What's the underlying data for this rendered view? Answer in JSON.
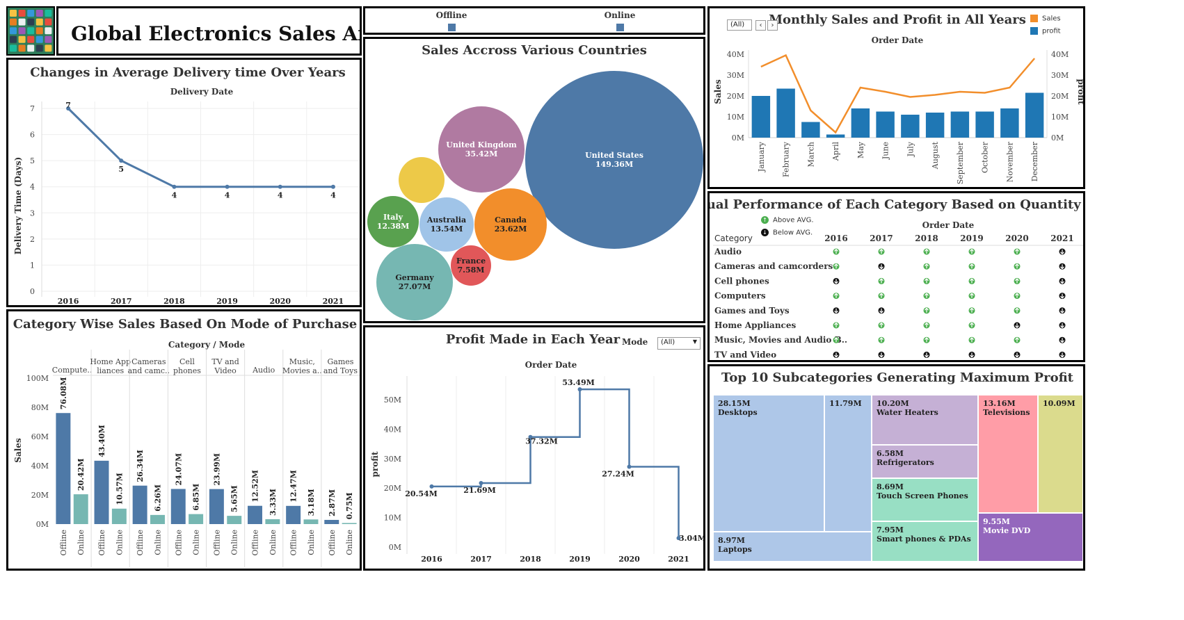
{
  "header": {
    "title": "Global Electronics Sales Analysis",
    "logo_icon": "electronics-grid-icon"
  },
  "colors": {
    "blue": "#4e79a7",
    "teal": "#76b7b2",
    "orange": "#f28e2b",
    "bar_blue": "#1f77b4",
    "up_green": "#4caf50",
    "down_black": "#111111"
  },
  "mode_legend": {
    "items": [
      "Offline",
      "Online"
    ]
  },
  "delivery": {
    "title": "Changes in Average Delivery time Over Years",
    "header": "Delivery Date",
    "ylabel": "Delivery Time (Days)",
    "yticks": [
      "0",
      "1",
      "2",
      "3",
      "4",
      "5",
      "6",
      "7"
    ],
    "chart_data": {
      "type": "line",
      "x": [
        "2016",
        "2017",
        "2018",
        "2019",
        "2020",
        "2021"
      ],
      "values": [
        7,
        5,
        4,
        4,
        4,
        4
      ],
      "ylim": [
        0,
        7
      ],
      "grid": true
    }
  },
  "category_sales": {
    "title": "Category Wise Sales Based On Mode of Purchase",
    "header": "Category  /  Mode",
    "ylabel": "Sales",
    "yticks": [
      "0M",
      "20M",
      "40M",
      "60M",
      "80M",
      "100M"
    ],
    "chart_data": {
      "type": "bar",
      "ylim": [
        0,
        100
      ],
      "categories": [
        {
          "label": [
            "Compute.."
          ],
          "offline": 76.08,
          "online": 20.42,
          "offline_label": "76.08M",
          "online_label": "20.42M"
        },
        {
          "label": [
            "Home App",
            "liances"
          ],
          "offline": 43.4,
          "online": 10.57,
          "offline_label": "43.40M",
          "online_label": "10.57M"
        },
        {
          "label": [
            "Cameras",
            "and camc.."
          ],
          "offline": 26.34,
          "online": 6.26,
          "offline_label": "26.34M",
          "online_label": "6.26M"
        },
        {
          "label": [
            "Cell",
            "phones"
          ],
          "offline": 24.07,
          "online": 6.85,
          "offline_label": "24.07M",
          "online_label": "6.85M"
        },
        {
          "label": [
            "TV and",
            "Video"
          ],
          "offline": 23.99,
          "online": 5.65,
          "offline_label": "23.99M",
          "online_label": "5.65M"
        },
        {
          "label": [
            "Audio"
          ],
          "offline": 12.52,
          "online": 3.33,
          "offline_label": "12.52M",
          "online_label": "3.33M"
        },
        {
          "label": [
            "Music,",
            "Movies a.."
          ],
          "offline": 12.47,
          "online": 3.18,
          "offline_label": "12.47M",
          "online_label": "3.18M"
        },
        {
          "label": [
            "Games",
            "and Toys"
          ],
          "offline": 2.87,
          "online": 0.75,
          "offline_label": "2.87M",
          "online_label": "0.75M"
        }
      ],
      "modes": [
        "Offline",
        "Online"
      ]
    }
  },
  "countries": {
    "title": "Sales Accross Various Countries",
    "chart_data": {
      "type": "bubble",
      "items": [
        {
          "name": "United States",
          "value_label": "149.36M",
          "value": 149.36,
          "color": "#4e79a7",
          "text": "light"
        },
        {
          "name": "United Kingdom",
          "value_label": "35.42M",
          "value": 35.42,
          "color": "#b07aa1",
          "text": "light"
        },
        {
          "name": "",
          "value_label": "",
          "value": 0,
          "color": "#edc948",
          "text": "light"
        },
        {
          "name": "Canada",
          "value_label": "23.62M",
          "value": 23.62,
          "color": "#f28e2b",
          "text": "dark"
        },
        {
          "name": "Australia",
          "value_label": "13.54M",
          "value": 13.54,
          "color": "#a0c4e8",
          "text": "dark"
        },
        {
          "name": "Italy",
          "value_label": "12.38M",
          "value": 12.38,
          "color": "#59a14f",
          "text": "light"
        },
        {
          "name": "Germany",
          "value_label": "27.07M",
          "value": 27.07,
          "color": "#76b7b2",
          "text": "dark"
        },
        {
          "name": "France",
          "value_label": "7.58M",
          "value": 7.58,
          "color": "#e15759",
          "text": "dark"
        }
      ]
    }
  },
  "profit_year": {
    "title": "Profit Made in Each Year",
    "mode_label": "Mode",
    "mode_value": "(All)",
    "header": "Order Date",
    "ylabel": "profit",
    "yticks": [
      "0M",
      "10M",
      "20M",
      "30M",
      "40M",
      "50M"
    ],
    "chart_data": {
      "type": "line",
      "step": true,
      "x": [
        "2016",
        "2017",
        "2018",
        "2019",
        "2020",
        "2021"
      ],
      "values": [
        20.54,
        21.69,
        37.32,
        53.49,
        27.24,
        3.04
      ],
      "labels": [
        "20.54M",
        "21.69M",
        "37.32M",
        "53.49M",
        "27.24M",
        "3.04M"
      ],
      "ylim": [
        0,
        58
      ]
    }
  },
  "monthly": {
    "title": "Monthly Sales and Profit in All Years",
    "filter": "(All)",
    "header": "Order Date",
    "ylabel_left": "Sales",
    "ylabel_right": "profit",
    "yticks": [
      "0M",
      "10M",
      "20M",
      "30M",
      "40M"
    ],
    "legend": [
      "Sales",
      "profit"
    ],
    "chart_data": {
      "type": "bar",
      "categories": [
        "January",
        "February",
        "March",
        "April",
        "May",
        "June",
        "July",
        "August",
        "September",
        "October",
        "November",
        "December"
      ],
      "series": [
        {
          "name": "profit",
          "values": [
            20.0,
            23.5,
            7.5,
            1.5,
            14.0,
            12.5,
            11.0,
            12.0,
            12.5,
            12.5,
            14.0,
            21.5
          ]
        },
        {
          "name": "Sales",
          "values": [
            34.0,
            39.5,
            13.0,
            2.5,
            24.0,
            22.0,
            19.5,
            20.5,
            22.0,
            21.5,
            24.0,
            38.0
          ]
        }
      ],
      "ylim": [
        0,
        42
      ]
    }
  },
  "annual": {
    "title": "Annual Performance of Each Category Based on Quantity Sold",
    "legend": [
      "Above AVG.",
      "Below AVG."
    ],
    "header": "Order Date",
    "category_header": "Category",
    "years": [
      "2016",
      "2017",
      "2018",
      "2019",
      "2020",
      "2021"
    ],
    "rows": [
      {
        "category": "Audio",
        "marks": [
          1,
          1,
          1,
          1,
          1,
          0
        ]
      },
      {
        "category": "Cameras and camcorders",
        "marks": [
          1,
          0,
          1,
          1,
          1,
          0
        ]
      },
      {
        "category": "Cell phones",
        "marks": [
          0,
          1,
          1,
          1,
          1,
          0
        ]
      },
      {
        "category": "Computers",
        "marks": [
          1,
          1,
          1,
          1,
          1,
          0
        ]
      },
      {
        "category": "Games and Toys",
        "marks": [
          0,
          0,
          1,
          1,
          1,
          0
        ]
      },
      {
        "category": "Home Appliances",
        "marks": [
          1,
          1,
          1,
          1,
          0,
          0
        ]
      },
      {
        "category": "Music, Movies and Audio B..",
        "marks": [
          1,
          1,
          1,
          1,
          1,
          0
        ]
      },
      {
        "category": "TV and Video",
        "marks": [
          0,
          0,
          0,
          0,
          0,
          0
        ]
      }
    ]
  },
  "treemap": {
    "title": "Top 10 Subcategories Generating Maximum Profit",
    "chart_data": {
      "type": "treemap",
      "items": [
        {
          "value": "28.15M",
          "name": "Desktops",
          "color": "#aec7e8"
        },
        {
          "value": "11.79M",
          "name": "",
          "color": "#aec7e8"
        },
        {
          "value": "8.97M",
          "name": "Laptops",
          "color": "#aec7e8"
        },
        {
          "value": "10.20M",
          "name": "Water Heaters",
          "color": "#c5b0d5"
        },
        {
          "value": "6.58M",
          "name": "Refrigerators",
          "color": "#c5b0d5"
        },
        {
          "value": "8.69M",
          "name": "Touch Screen Phones",
          "color": "#98dfc4"
        },
        {
          "value": "7.95M",
          "name": "Smart phones & PDAs",
          "color": "#98dfc4"
        },
        {
          "value": "13.16M",
          "name": "Televisions",
          "color": "#ff9da7"
        },
        {
          "value": "10.09M",
          "name": "",
          "color": "#dbdb8d"
        },
        {
          "value": "9.55M",
          "name": "Movie DVD",
          "color": "#9467bd"
        }
      ]
    }
  }
}
